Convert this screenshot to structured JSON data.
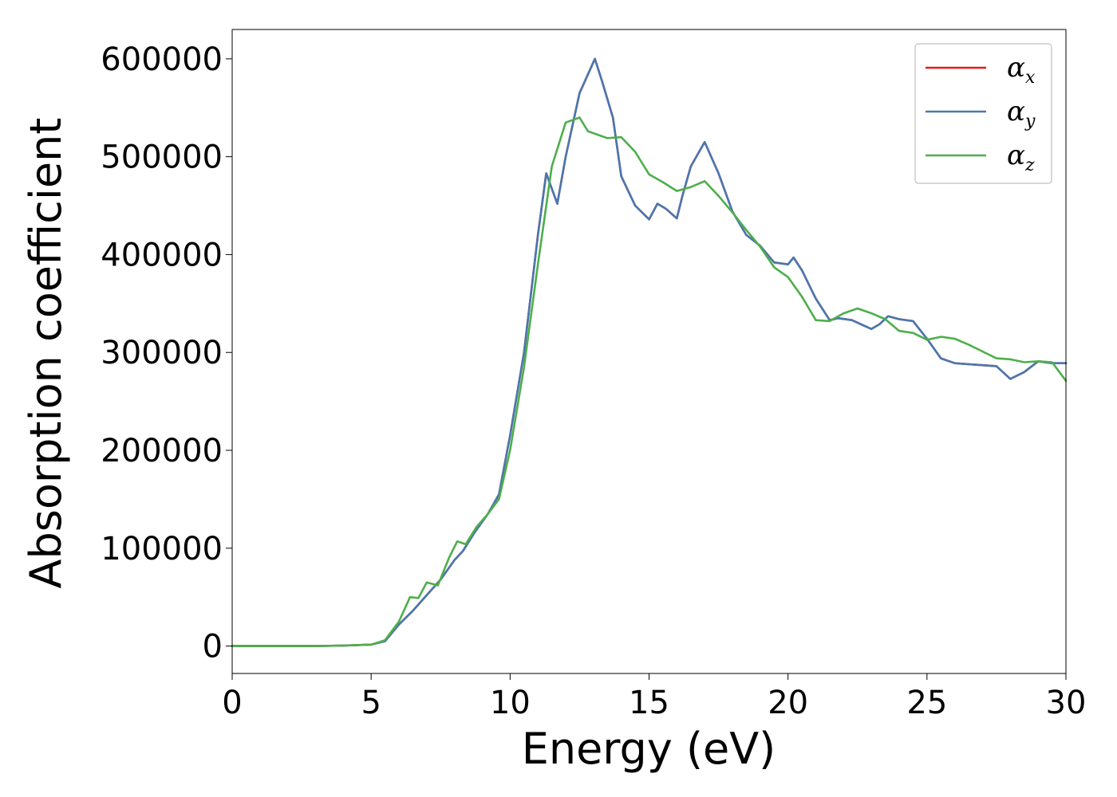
{
  "chart_data": {
    "type": "line",
    "title": "",
    "xlabel": "Energy (eV)",
    "ylabel": "Absorption coefficient",
    "xlim": [
      0,
      30
    ],
    "ylim": [
      -28000,
      630000
    ],
    "xticks": [
      0,
      5,
      10,
      15,
      20,
      25,
      30
    ],
    "yticks": [
      0,
      100000,
      200000,
      300000,
      400000,
      500000,
      600000
    ],
    "xtick_labels": [
      "0",
      "5",
      "10",
      "15",
      "20",
      "25",
      "30"
    ],
    "ytick_labels": [
      "0",
      "100000",
      "200000",
      "300000",
      "400000",
      "500000",
      "600000"
    ],
    "grid": false,
    "legend_position": "top-right",
    "series": [
      {
        "name": "α",
        "subscript": "x",
        "color": "#e41a1c",
        "x": [
          0,
          1,
          2,
          3,
          4,
          5,
          5.5,
          6,
          6.5,
          7,
          7.5,
          8,
          8.3,
          8.7,
          9.2,
          9.6,
          10,
          10.5,
          11,
          11.3,
          11.7,
          12,
          12.5,
          13.05,
          13.3,
          13.7,
          14,
          14.5,
          15,
          15.3,
          15.6,
          16,
          16.2,
          16.5,
          17,
          17.5,
          18,
          18.5,
          19,
          19.5,
          20,
          20.2,
          20.5,
          21,
          21.5,
          21.8,
          22.3,
          23,
          23.3,
          23.6,
          24,
          24.5,
          25,
          25.5,
          26,
          26.5,
          27,
          27.5,
          28,
          28.5,
          29,
          29.5,
          30
        ],
        "values": [
          0,
          0,
          0,
          0,
          500,
          1500,
          5000,
          22000,
          36000,
          52000,
          68000,
          88000,
          97000,
          115000,
          135000,
          155000,
          215000,
          300000,
          420000,
          483000,
          452000,
          500000,
          565000,
          600000,
          578000,
          540000,
          480000,
          450000,
          436000,
          452000,
          447000,
          437000,
          460000,
          490000,
          515000,
          483000,
          444000,
          420000,
          409000,
          392000,
          390000,
          397000,
          384000,
          355000,
          333000,
          335000,
          333000,
          324000,
          329000,
          337000,
          334000,
          332000,
          314000,
          294000,
          289000,
          288000,
          287000,
          286000,
          273000,
          280000,
          291000,
          289000,
          289000
        ]
      },
      {
        "name": "α",
        "subscript": "y",
        "color": "#4878b0",
        "x": [
          0,
          1,
          2,
          3,
          4,
          5,
          5.5,
          6,
          6.5,
          7,
          7.5,
          8,
          8.3,
          8.7,
          9.2,
          9.6,
          10,
          10.5,
          11,
          11.3,
          11.7,
          12,
          12.5,
          13.05,
          13.3,
          13.7,
          14,
          14.5,
          15,
          15.3,
          15.6,
          16,
          16.2,
          16.5,
          17,
          17.5,
          18,
          18.5,
          19,
          19.5,
          20,
          20.2,
          20.5,
          21,
          21.5,
          21.8,
          22.3,
          23,
          23.3,
          23.6,
          24,
          24.5,
          25,
          25.5,
          26,
          26.5,
          27,
          27.5,
          28,
          28.5,
          29,
          29.5,
          30
        ],
        "values": [
          0,
          0,
          0,
          0,
          500,
          1500,
          5000,
          22000,
          36000,
          52000,
          68000,
          88000,
          97000,
          115000,
          135000,
          155000,
          215000,
          300000,
          420000,
          483000,
          452000,
          500000,
          565000,
          600000,
          578000,
          540000,
          480000,
          450000,
          436000,
          452000,
          447000,
          437000,
          460000,
          490000,
          515000,
          483000,
          444000,
          420000,
          409000,
          392000,
          390000,
          397000,
          384000,
          355000,
          333000,
          335000,
          333000,
          324000,
          329000,
          337000,
          334000,
          332000,
          314000,
          294000,
          289000,
          288000,
          287000,
          286000,
          273000,
          280000,
          291000,
          289000,
          289000
        ]
      },
      {
        "name": "α",
        "subscript": "z",
        "color": "#4daf4a",
        "x": [
          0,
          1,
          2,
          3,
          4,
          5,
          5.5,
          6,
          6.4,
          6.7,
          7,
          7.4,
          7.8,
          8.1,
          8.4,
          8.8,
          9.2,
          9.6,
          10,
          10.5,
          11,
          11.5,
          12,
          12.5,
          12.8,
          13.2,
          13.5,
          14,
          14.5,
          15,
          15.5,
          16,
          16.5,
          17,
          17.5,
          18,
          18.5,
          19,
          19.5,
          20,
          20.5,
          21,
          21.5,
          22,
          22.5,
          23,
          23.5,
          24,
          24.5,
          25,
          25.5,
          26,
          26.5,
          27,
          27.5,
          28,
          28.5,
          29,
          29.5,
          30
        ],
        "values": [
          0,
          0,
          0,
          0,
          500,
          1500,
          6000,
          25000,
          50000,
          49000,
          65000,
          62000,
          90000,
          107000,
          104000,
          122000,
          135000,
          150000,
          200000,
          285000,
          390000,
          490000,
          535000,
          540000,
          526000,
          522000,
          519000,
          520000,
          505000,
          482000,
          474000,
          465000,
          469000,
          475000,
          460000,
          443000,
          425000,
          408000,
          387000,
          377000,
          357000,
          333000,
          332000,
          340000,
          345000,
          340000,
          334000,
          322000,
          320000,
          313000,
          316000,
          314000,
          308000,
          301000,
          294000,
          293000,
          290000,
          291000,
          290000,
          271000
        ]
      }
    ]
  }
}
